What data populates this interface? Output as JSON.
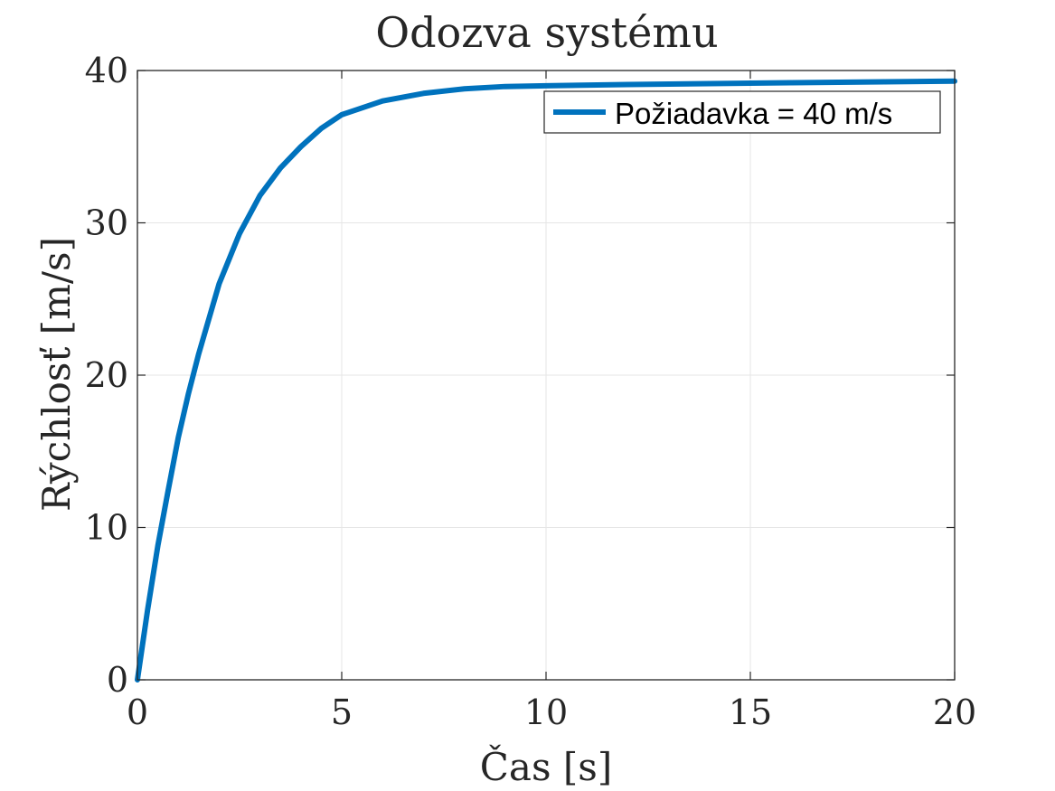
{
  "chart_data": {
    "type": "line",
    "title": "Odozva systému",
    "xlabel": "Čas [s]",
    "ylabel": "Rýchlosť [m/s]",
    "xlim": [
      0,
      20
    ],
    "ylim": [
      0,
      40
    ],
    "xticks": [
      0,
      5,
      10,
      15,
      20
    ],
    "yticks": [
      0,
      10,
      20,
      30,
      40
    ],
    "grid": true,
    "legend_position": "top-right",
    "series": [
      {
        "name": "Požiadavka = 40 m/s",
        "color": "#0072BD",
        "x": [
          0,
          0.25,
          0.5,
          0.75,
          1,
          1.25,
          1.5,
          2,
          2.5,
          3,
          3.5,
          4,
          4.5,
          5,
          6,
          7,
          8,
          9,
          10,
          12,
          14,
          16,
          18,
          20
        ],
        "y": [
          0,
          4.6,
          8.8,
          12.4,
          15.9,
          18.8,
          21.4,
          26.0,
          29.3,
          31.8,
          33.6,
          35.0,
          36.2,
          37.1,
          38.0,
          38.5,
          38.8,
          38.95,
          39.0,
          39.08,
          39.14,
          39.2,
          39.25,
          39.3
        ]
      }
    ]
  }
}
